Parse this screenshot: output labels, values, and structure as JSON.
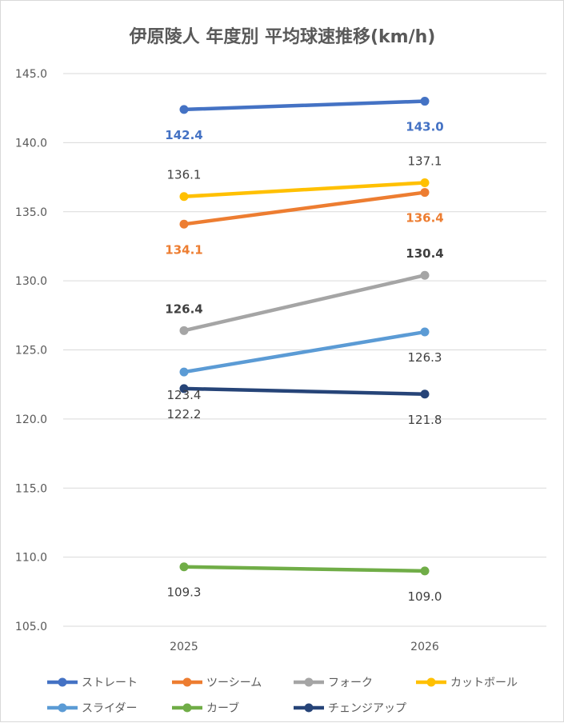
{
  "chart_data": {
    "type": "line",
    "title": "伊原陵人 年度別 平均球速推移(km/h)",
    "categories": [
      "2025",
      "2026"
    ],
    "ylim": [
      105,
      145
    ],
    "ytick_step": 5,
    "ytick_labels": [
      "145.0",
      "140.0",
      "135.0",
      "130.0",
      "125.0",
      "120.0",
      "115.0",
      "110.0",
      "105.0"
    ],
    "series": [
      {
        "name": "ストレート",
        "color": "#4472C4",
        "values": [
          142.4,
          143.0
        ],
        "labels": [
          "142.4",
          "143.0"
        ],
        "label_color": "#4472C4",
        "label_bold": true,
        "label_pos": [
          "below",
          "below"
        ]
      },
      {
        "name": "ツーシーム",
        "color": "#ED7D31",
        "values": [
          134.1,
          136.4
        ],
        "labels": [
          "134.1",
          "136.4"
        ],
        "label_color": "#ED7D31",
        "label_bold": true,
        "label_pos": [
          "below",
          "below"
        ]
      },
      {
        "name": "フォーク",
        "color": "#A5A5A5",
        "values": [
          126.4,
          130.4
        ],
        "labels": [
          "126.4",
          "130.4"
        ],
        "label_color": "#404040",
        "label_bold": true,
        "label_pos": [
          "above",
          "above"
        ]
      },
      {
        "name": "カットボール",
        "color": "#FFC000",
        "values": [
          136.1,
          137.1
        ],
        "labels": [
          "136.1",
          "137.1"
        ],
        "label_color": "#404040",
        "label_bold": false,
        "label_pos": [
          "above",
          "above"
        ]
      },
      {
        "name": "スライダー",
        "color": "#5B9BD5",
        "values": [
          123.4,
          126.3
        ],
        "labels": [
          "123.4",
          "126.3"
        ],
        "label_color": "#404040",
        "label_bold": false,
        "label_pos": [
          "below2",
          "below"
        ]
      },
      {
        "name": "カーブ",
        "color": "#70AD47",
        "values": [
          109.3,
          109.0
        ],
        "labels": [
          "109.3",
          "109.0"
        ],
        "label_color": "#404040",
        "label_bold": false,
        "label_pos": [
          "below",
          "below"
        ]
      },
      {
        "name": "チェンジアップ",
        "color": "#264478",
        "values": [
          122.2,
          121.8
        ],
        "labels": [
          "122.2",
          "121.8"
        ],
        "label_color": "#404040",
        "label_bold": false,
        "label_pos": [
          "below",
          "below"
        ]
      }
    ],
    "legend_position": "bottom"
  }
}
